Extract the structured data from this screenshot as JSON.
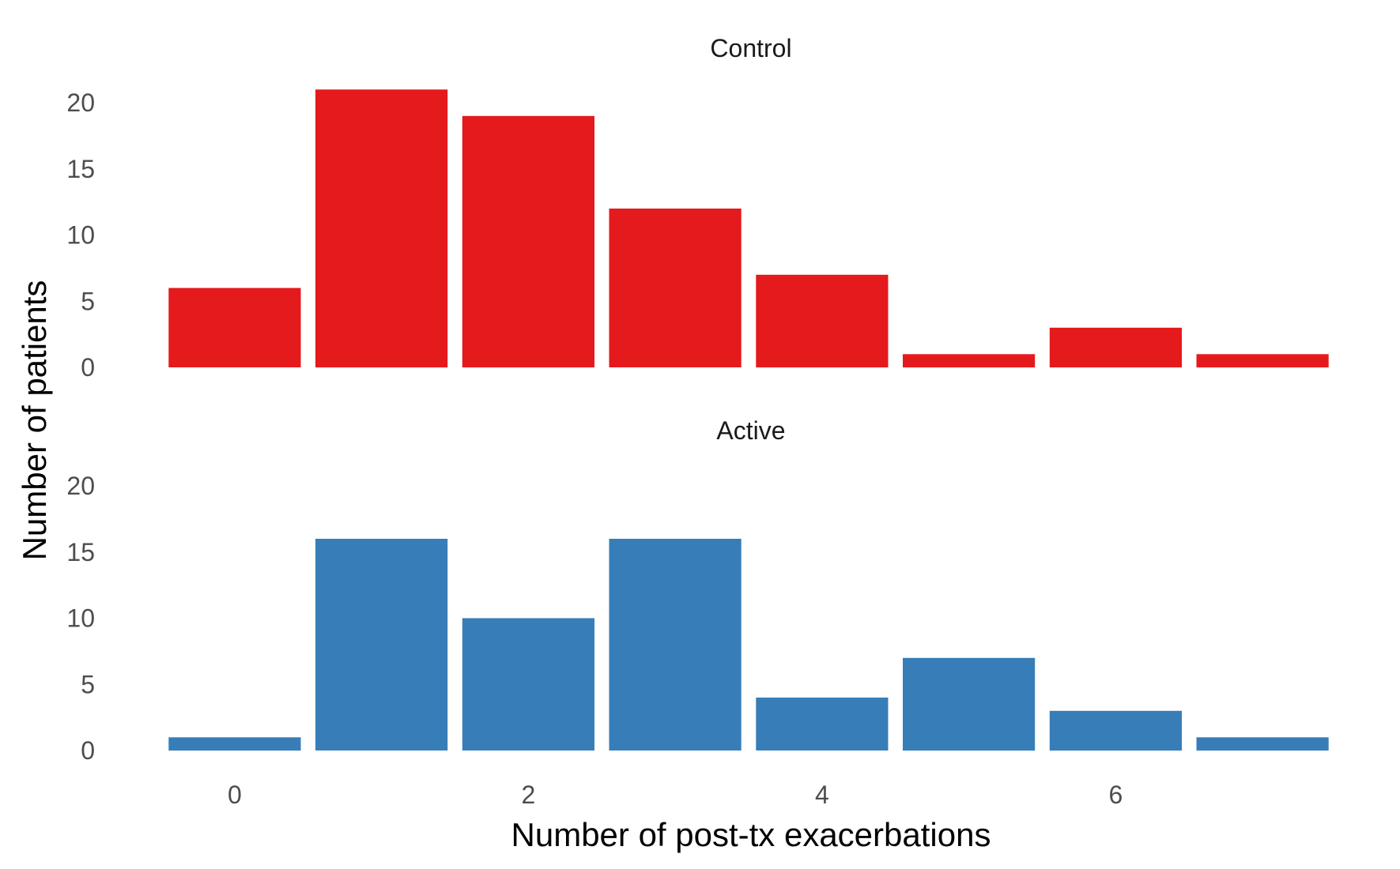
{
  "chart_data": {
    "type": "bar",
    "xlabel": "Number of post-tx exacerbations",
    "ylabel": "Number of patients",
    "x": [
      0,
      1,
      2,
      3,
      4,
      5,
      6,
      7
    ],
    "x_tick_labels": [
      "0",
      "2",
      "4",
      "6"
    ],
    "x_tick_values": [
      0,
      2,
      4,
      6
    ],
    "ylim": [
      0,
      21
    ],
    "y_ticks": [
      0,
      5,
      10,
      15,
      20
    ],
    "grid": false,
    "facets": [
      {
        "strip_label": "Control",
        "color": "#E41A1C",
        "values": [
          6,
          21,
          19,
          12,
          7,
          1,
          3,
          1
        ]
      },
      {
        "strip_label": "Active",
        "color": "#377EB8",
        "values": [
          1,
          16,
          10,
          16,
          4,
          7,
          3,
          1
        ]
      }
    ]
  }
}
